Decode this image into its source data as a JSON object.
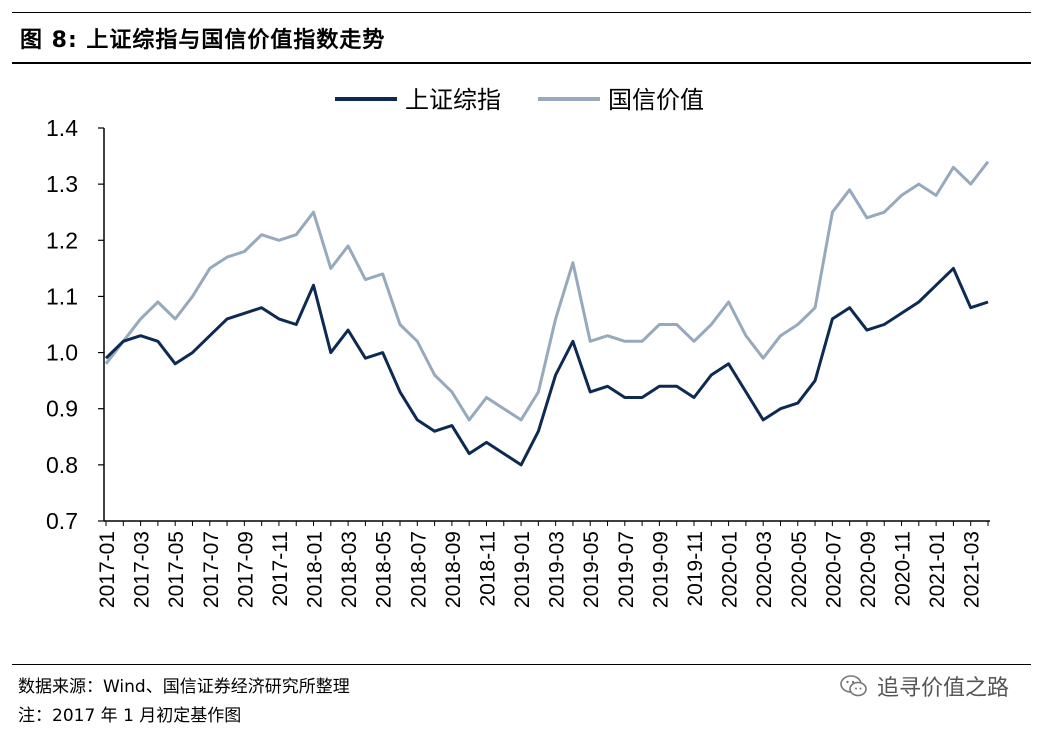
{
  "header": {
    "title": "图 8: 上证综指与国信价值指数走势"
  },
  "footer": {
    "source": "数据来源：Wind、国信证券经济研究所整理",
    "note": "注：2017 年 1 月初定基作图",
    "brand": "追寻价值之路",
    "brand_icon": "wechat-icon"
  },
  "chart_data": {
    "type": "line",
    "ylim": [
      0.7,
      1.4
    ],
    "yticks": [
      "0.7",
      "0.8",
      "0.9",
      "1.0",
      "1.1",
      "1.2",
      "1.3",
      "1.4"
    ],
    "legend_position": "top-center",
    "grid": false,
    "x_tick_labels": [
      "2017-01",
      "2017-03",
      "2017-05",
      "2017-07",
      "2017-09",
      "2017-11",
      "2018-01",
      "2018-03",
      "2018-05",
      "2018-07",
      "2018-09",
      "2018-11",
      "2019-01",
      "2019-03",
      "2019-05",
      "2019-07",
      "2019-09",
      "2019-11",
      "2020-01",
      "2020-03",
      "2020-05",
      "2020-07",
      "2020-09",
      "2020-11",
      "2021-01",
      "2021-03"
    ],
    "x": [
      "2017-01",
      "2017-02",
      "2017-03",
      "2017-04",
      "2017-05",
      "2017-06",
      "2017-07",
      "2017-08",
      "2017-09",
      "2017-10",
      "2017-11",
      "2017-12",
      "2018-01",
      "2018-02",
      "2018-03",
      "2018-04",
      "2018-05",
      "2018-06",
      "2018-07",
      "2018-08",
      "2018-09",
      "2018-10",
      "2018-11",
      "2018-12",
      "2019-01",
      "2019-02",
      "2019-03",
      "2019-04",
      "2019-05",
      "2019-06",
      "2019-07",
      "2019-08",
      "2019-09",
      "2019-10",
      "2019-11",
      "2019-12",
      "2020-01",
      "2020-02",
      "2020-03",
      "2020-04",
      "2020-05",
      "2020-06",
      "2020-07",
      "2020-08",
      "2020-09",
      "2020-10",
      "2020-11",
      "2020-12",
      "2021-01",
      "2021-02",
      "2021-03",
      "2021-04"
    ],
    "series": [
      {
        "name": "上证综指",
        "color": "#0d2a52",
        "values": [
          0.99,
          1.02,
          1.03,
          1.02,
          0.98,
          1.0,
          1.03,
          1.06,
          1.07,
          1.08,
          1.06,
          1.05,
          1.12,
          1.0,
          1.04,
          0.99,
          1.0,
          0.93,
          0.88,
          0.86,
          0.87,
          0.82,
          0.84,
          0.82,
          0.8,
          0.86,
          0.96,
          1.02,
          0.93,
          0.94,
          0.92,
          0.92,
          0.94,
          0.94,
          0.92,
          0.96,
          0.98,
          0.93,
          0.88,
          0.9,
          0.91,
          0.95,
          1.06,
          1.08,
          1.04,
          1.05,
          1.07,
          1.09,
          1.12,
          1.15,
          1.08,
          1.09
        ]
      },
      {
        "name": "国信价值",
        "color": "#96a9bd",
        "values": [
          0.98,
          1.02,
          1.06,
          1.09,
          1.06,
          1.1,
          1.15,
          1.17,
          1.18,
          1.21,
          1.2,
          1.21,
          1.25,
          1.15,
          1.19,
          1.13,
          1.14,
          1.05,
          1.02,
          0.96,
          0.93,
          0.88,
          0.92,
          0.9,
          0.88,
          0.93,
          1.06,
          1.16,
          1.02,
          1.03,
          1.02,
          1.02,
          1.05,
          1.05,
          1.02,
          1.05,
          1.09,
          1.03,
          0.99,
          1.03,
          1.05,
          1.08,
          1.25,
          1.29,
          1.24,
          1.25,
          1.28,
          1.3,
          1.28,
          1.33,
          1.3,
          1.34
        ]
      }
    ]
  }
}
